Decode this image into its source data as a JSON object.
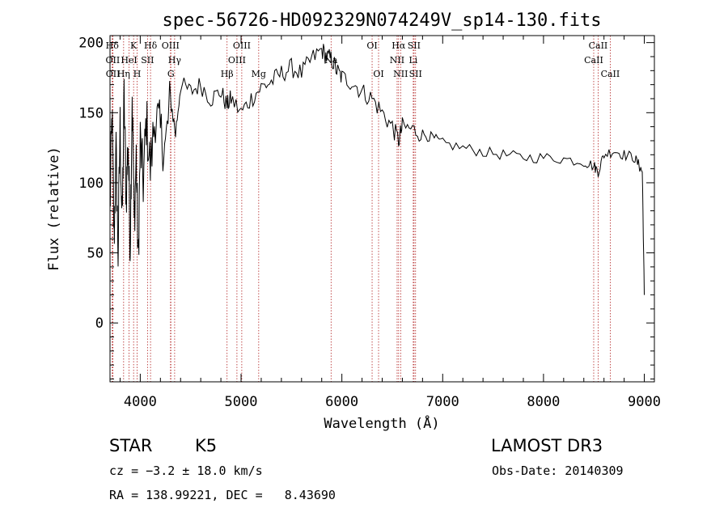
{
  "chart_data": {
    "type": "line",
    "title": "spec-56726-HD092329N074249V_sp14-130.fits",
    "xlabel": "Wavelength (Å)",
    "ylabel": "Flux (relative)",
    "xlim": [
      3700,
      9100
    ],
    "ylim": [
      -42,
      205
    ],
    "xticks": [
      4000,
      5000,
      6000,
      7000,
      8000,
      9000
    ],
    "yticks": [
      0,
      50,
      100,
      150,
      200
    ],
    "xtick_labels": [
      "4000",
      "5000",
      "6000",
      "7000",
      "8000",
      "9000"
    ],
    "ytick_labels": [
      "0",
      "50",
      "100",
      "150",
      "200"
    ],
    "series": [
      {
        "name": "spectrum",
        "x": [
          3700,
          3720,
          3740,
          3760,
          3780,
          3800,
          3820,
          3840,
          3860,
          3880,
          3900,
          3920,
          3940,
          3960,
          3980,
          4000,
          4030,
          4060,
          4100,
          4150,
          4200,
          4250,
          4300,
          4350,
          4400,
          4500,
          4600,
          4700,
          4800,
          4861,
          4900,
          5000,
          5100,
          5200,
          5300,
          5400,
          5500,
          5600,
          5700,
          5800,
          5850,
          5900,
          5950,
          6000,
          6100,
          6200,
          6300,
          6400,
          6500,
          6563,
          6600,
          6700,
          6800,
          6900,
          7000,
          7200,
          7400,
          7600,
          7800,
          8000,
          8200,
          8400,
          8500,
          8542,
          8600,
          8700,
          8800,
          8900,
          8950,
          8980,
          9000
        ],
        "y": [
          80,
          150,
          60,
          120,
          50,
          140,
          70,
          160,
          90,
          130,
          55,
          165,
          70,
          120,
          40,
          130,
          100,
          145,
          110,
          150,
          135,
          125,
          160,
          135,
          170,
          165,
          170,
          160,
          165,
          155,
          160,
          150,
          160,
          168,
          172,
          178,
          182,
          178,
          188,
          195,
          190,
          188,
          180,
          175,
          172,
          165,
          160,
          150,
          140,
          130,
          140,
          138,
          135,
          132,
          128,
          125,
          122,
          120,
          118,
          118,
          117,
          115,
          112,
          108,
          120,
          123,
          120,
          118,
          112,
          108,
          20
        ]
      }
    ],
    "line_markers": [
      {
        "label": "Hδ",
        "wavelength": 3722,
        "row": 0
      },
      {
        "label": "OII",
        "wavelength": 3727,
        "row": 1
      },
      {
        "label": "OII",
        "wavelength": 3729,
        "row": 2
      },
      {
        "label": "Hη",
        "wavelength": 3835,
        "row": 2
      },
      {
        "label": "HeI",
        "wavelength": 3889,
        "row": 1
      },
      {
        "label": "K",
        "wavelength": 3934,
        "row": 0
      },
      {
        "label": "H",
        "wavelength": 3969,
        "row": 2
      },
      {
        "label": "SII",
        "wavelength": 4072,
        "row": 1
      },
      {
        "label": "Hδ",
        "wavelength": 4102,
        "row": 0
      },
      {
        "label": "OIII",
        "wavelength": 4300,
        "row": 0
      },
      {
        "label": "G",
        "wavelength": 4304,
        "row": 2
      },
      {
        "label": "Hγ",
        "wavelength": 4341,
        "row": 1
      },
      {
        "label": "Hβ",
        "wavelength": 4861,
        "row": 2
      },
      {
        "label": "OIII",
        "wavelength": 4959,
        "row": 1
      },
      {
        "label": "OIII",
        "wavelength": 5007,
        "row": 0
      },
      {
        "label": "Mg",
        "wavelength": 5175,
        "row": 2
      },
      {
        "label": "Na",
        "wavelength": 5893,
        "row": 1
      },
      {
        "label": "OI",
        "wavelength": 6300,
        "row": 0
      },
      {
        "label": "OI",
        "wavelength": 6364,
        "row": 2
      },
      {
        "label": "NII",
        "wavelength": 6548,
        "row": 1
      },
      {
        "label": "Hα",
        "wavelength": 6563,
        "row": 0
      },
      {
        "label": "NII",
        "wavelength": 6583,
        "row": 2
      },
      {
        "label": "Li",
        "wavelength": 6708,
        "row": 1
      },
      {
        "label": "SII",
        "wavelength": 6716,
        "row": 0
      },
      {
        "label": "SII",
        "wavelength": 6731,
        "row": 2
      },
      {
        "label": "CaII",
        "wavelength": 8498,
        "row": 1
      },
      {
        "label": "CaII",
        "wavelength": 8542,
        "row": 0
      },
      {
        "label": "CaII",
        "wavelength": 8662,
        "row": 2
      }
    ]
  },
  "footer": {
    "object_type": "STAR",
    "subclass": "K5",
    "survey": "LAMOST DR3",
    "cz": "cz = −3.2 ± 18.0 km/s",
    "obs_date": "Obs-Date: 20140309",
    "coords": "RA = 138.99221, DEC =   8.43690"
  }
}
